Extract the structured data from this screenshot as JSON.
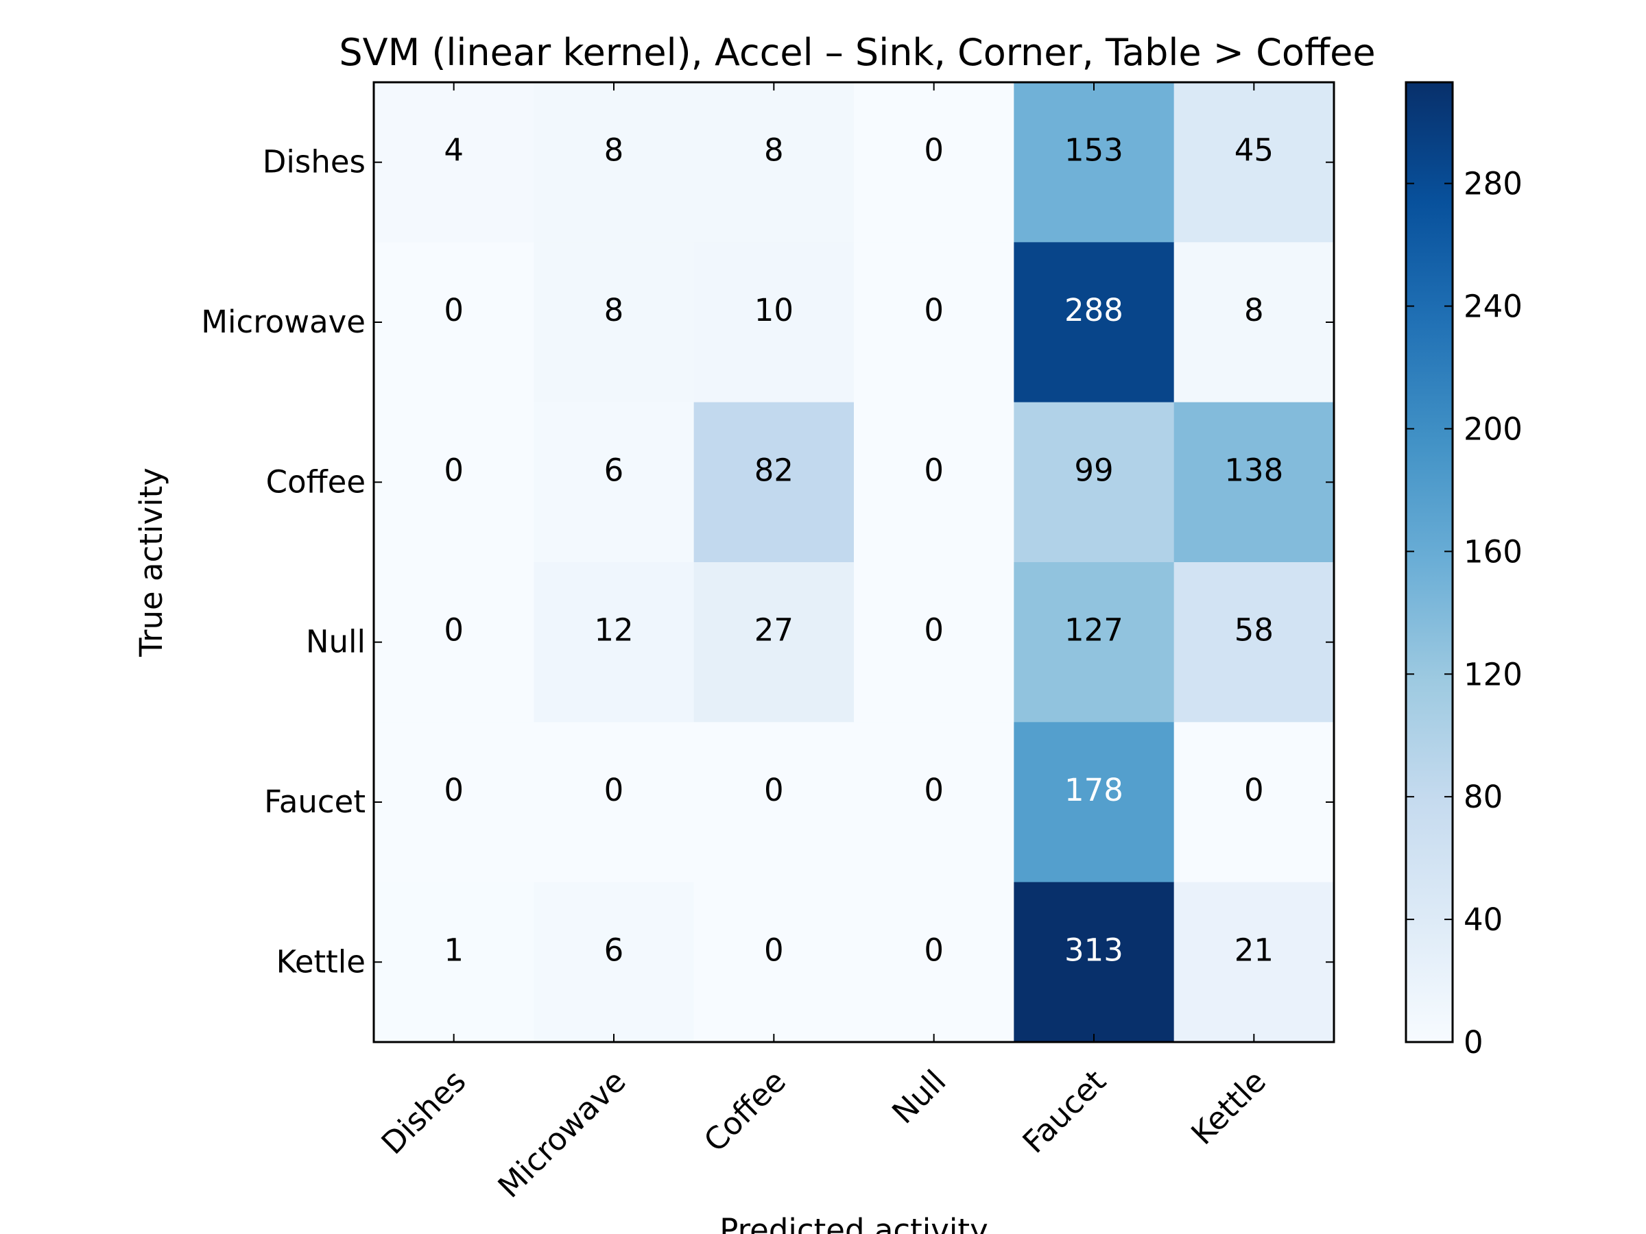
{
  "chart_data": {
    "type": "heatmap",
    "title": "SVM (linear kernel), Accel – Sink, Corner, Table > Coffee",
    "xlabel": "Predicted activity",
    "ylabel": "True activity",
    "x_categories": [
      "Dishes",
      "Microwave",
      "Coffee",
      "Null",
      "Faucet",
      "Kettle"
    ],
    "y_categories": [
      "Dishes",
      "Microwave",
      "Coffee",
      "Null",
      "Faucet",
      "Kettle"
    ],
    "values": [
      [
        4,
        8,
        8,
        0,
        153,
        45
      ],
      [
        0,
        8,
        10,
        0,
        288,
        8
      ],
      [
        0,
        6,
        82,
        0,
        99,
        138
      ],
      [
        0,
        12,
        27,
        0,
        127,
        58
      ],
      [
        0,
        0,
        0,
        0,
        178,
        0
      ],
      [
        1,
        6,
        0,
        0,
        313,
        21
      ]
    ],
    "colormap": "Blues",
    "colorbar": {
      "min": 0,
      "max": 313,
      "ticks": [
        0,
        40,
        80,
        120,
        160,
        200,
        240,
        280
      ]
    },
    "grid": false
  }
}
